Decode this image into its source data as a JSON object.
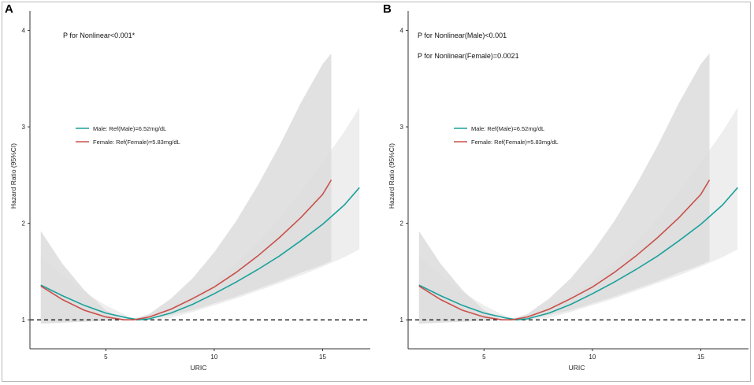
{
  "chart_data": [
    {
      "type": "line",
      "panel_label": "A",
      "annotations": [
        "P for Nonlinear<0.001*"
      ],
      "xlabel": "URIC",
      "ylabel": "Hazard Ratio (95%CI)",
      "xlim": [
        1.5,
        17.2
      ],
      "ylim": [
        0.7,
        4.2
      ],
      "xticks": [
        5,
        10,
        15
      ],
      "yticks": [
        1,
        2,
        3,
        4
      ],
      "reference_line": 1,
      "legend": {
        "placement": "upper-left",
        "entries": [
          "Male: Ref(Male)=6.52mg/dL",
          "Female: Ref(Female)=5.83mg/dL"
        ]
      },
      "series": [
        {
          "name": "Male: Ref(Male)=6.52mg/dL",
          "color": "#1aa19b",
          "x": [
            2,
            3,
            4,
            5,
            6,
            6.52,
            7,
            8,
            9,
            10,
            11,
            12,
            13,
            14,
            15,
            16,
            16.7
          ],
          "y": [
            1.36,
            1.25,
            1.15,
            1.07,
            1.02,
            1.0,
            1.01,
            1.07,
            1.16,
            1.27,
            1.39,
            1.52,
            1.66,
            1.82,
            1.99,
            2.19,
            2.37
          ],
          "ci_lower": [
            0.99,
            0.99,
            1.0,
            1.0,
            1.0,
            1.0,
            1.0,
            1.02,
            1.08,
            1.15,
            1.22,
            1.3,
            1.38,
            1.46,
            1.55,
            1.65,
            1.73
          ],
          "ci_upper": [
            1.66,
            1.46,
            1.29,
            1.15,
            1.04,
            1.0,
            1.03,
            1.13,
            1.25,
            1.4,
            1.58,
            1.8,
            2.05,
            2.33,
            2.63,
            2.95,
            3.2
          ]
        },
        {
          "name": "Female: Ref(Female)=5.83mg/dL",
          "color": "#c9504a",
          "x": [
            2,
            3,
            4,
            5,
            5.83,
            6.3,
            7,
            8,
            9,
            10,
            11,
            12,
            13,
            14,
            15,
            15.4
          ],
          "y": [
            1.35,
            1.21,
            1.1,
            1.03,
            1.0,
            1.0,
            1.03,
            1.11,
            1.22,
            1.34,
            1.49,
            1.66,
            1.85,
            2.06,
            2.3,
            2.45
          ],
          "ci_lower": [
            0.96,
            0.97,
            0.98,
            0.99,
            1.0,
            1.0,
            1.01,
            1.05,
            1.1,
            1.17,
            1.24,
            1.32,
            1.4,
            1.49,
            1.57,
            1.61
          ],
          "ci_upper": [
            1.92,
            1.58,
            1.31,
            1.1,
            1.0,
            1.01,
            1.06,
            1.22,
            1.43,
            1.7,
            2.02,
            2.39,
            2.8,
            3.25,
            3.65,
            3.76
          ]
        }
      ]
    },
    {
      "type": "line",
      "panel_label": "B",
      "annotations": [
        "P for Nonlinear(Male)<0.001",
        "P for Nonlinear(Female)=0.0021"
      ],
      "xlabel": "URIC",
      "ylabel": "Hazard Ratio (95%CI)",
      "xlim": [
        1.5,
        17.2
      ],
      "ylim": [
        0.7,
        4.2
      ],
      "xticks": [
        5,
        10,
        15
      ],
      "yticks": [
        1,
        2,
        3,
        4
      ],
      "reference_line": 1,
      "legend": {
        "placement": "upper-left",
        "entries": [
          "Male: Ref(Male)=6.52mg/dL",
          "Female: Ref(Female)=5.83mg/dL"
        ]
      },
      "series": [
        {
          "name": "Male: Ref(Male)=6.52mg/dL",
          "color": "#1aa19b",
          "x": [
            2,
            3,
            4,
            5,
            6,
            6.52,
            7,
            8,
            9,
            10,
            11,
            12,
            13,
            14,
            15,
            16,
            16.7
          ],
          "y": [
            1.36,
            1.25,
            1.15,
            1.07,
            1.02,
            1.0,
            1.01,
            1.07,
            1.16,
            1.27,
            1.39,
            1.52,
            1.66,
            1.82,
            1.99,
            2.19,
            2.37
          ],
          "ci_lower": [
            0.99,
            0.99,
            1.0,
            1.0,
            1.0,
            1.0,
            1.0,
            1.02,
            1.08,
            1.15,
            1.22,
            1.3,
            1.38,
            1.46,
            1.55,
            1.65,
            1.73
          ],
          "ci_upper": [
            1.66,
            1.46,
            1.29,
            1.15,
            1.04,
            1.0,
            1.03,
            1.13,
            1.25,
            1.4,
            1.58,
            1.8,
            2.05,
            2.33,
            2.63,
            2.95,
            3.2
          ]
        },
        {
          "name": "Female: Ref(Female)=5.83mg/dL",
          "color": "#c9504a",
          "x": [
            2,
            3,
            4,
            5,
            5.83,
            6.3,
            7,
            8,
            9,
            10,
            11,
            12,
            13,
            14,
            15,
            15.4
          ],
          "y": [
            1.35,
            1.21,
            1.1,
            1.03,
            1.0,
            1.0,
            1.03,
            1.11,
            1.22,
            1.34,
            1.49,
            1.66,
            1.85,
            2.06,
            2.3,
            2.45
          ],
          "ci_lower": [
            0.96,
            0.97,
            0.98,
            0.99,
            1.0,
            1.0,
            1.01,
            1.05,
            1.1,
            1.17,
            1.24,
            1.32,
            1.4,
            1.49,
            1.57,
            1.61
          ],
          "ci_upper": [
            1.92,
            1.58,
            1.31,
            1.1,
            1.0,
            1.01,
            1.06,
            1.22,
            1.43,
            1.7,
            2.02,
            2.39,
            2.8,
            3.25,
            3.65,
            3.76
          ]
        }
      ]
    }
  ]
}
